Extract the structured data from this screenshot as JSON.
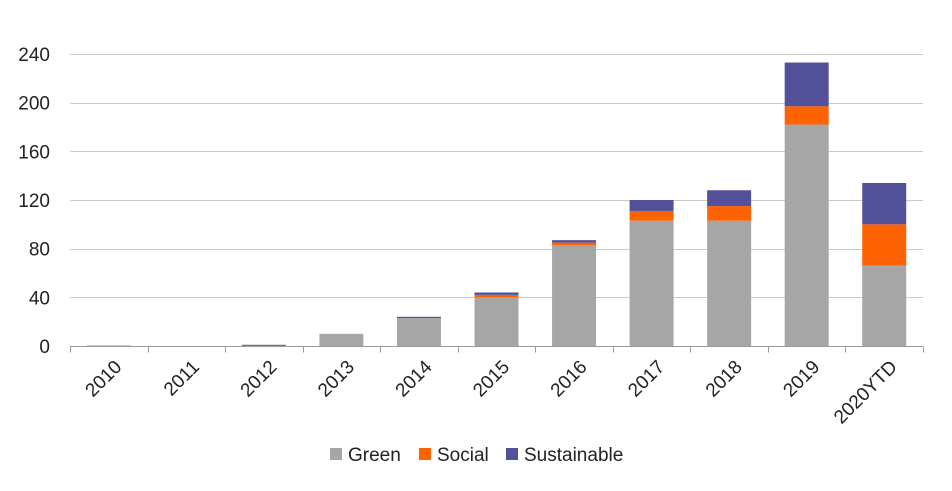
{
  "chart_data": {
    "type": "bar",
    "stacked": true,
    "categories": [
      "2010",
      "2011",
      "2012",
      "2013",
      "2014",
      "2015",
      "2016",
      "2017",
      "2018",
      "2019",
      "2020YTD"
    ],
    "series": [
      {
        "name": "Green",
        "color": "#a6a6a6",
        "values": [
          0.5,
          0,
          0.5,
          10,
          23,
          40,
          83,
          103,
          103,
          182,
          66
        ]
      },
      {
        "name": "Social",
        "color": "#ff6200",
        "values": [
          0,
          0,
          0,
          0,
          0,
          2,
          2,
          8,
          12,
          15,
          34
        ]
      },
      {
        "name": "Sustainable",
        "color": "#525199",
        "values": [
          0,
          0,
          0.5,
          0,
          1,
          2,
          2,
          9,
          13,
          36,
          34
        ]
      }
    ],
    "ylim": [
      0,
      240
    ],
    "yticks": [
      0,
      40,
      80,
      120,
      160,
      200,
      240
    ],
    "grid": true,
    "legend_position": "bottom",
    "title": "",
    "xlabel": "",
    "ylabel": ""
  }
}
